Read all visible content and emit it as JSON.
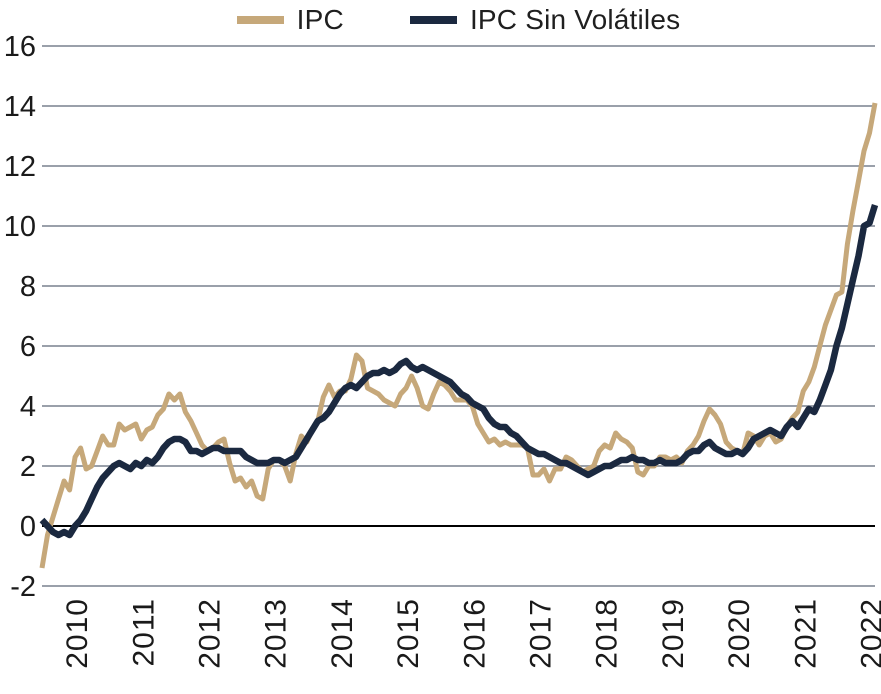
{
  "legend": {
    "items": [
      {
        "label": "IPC",
        "color": "#C6A87A"
      },
      {
        "label": "IPC Sin Volátiles",
        "color": "#1B2940"
      }
    ]
  },
  "colors": {
    "ipc_line": "#C6A87A",
    "ipc_sin_volatiles_line": "#1B2940",
    "gridline": "#9aa0aa",
    "zero_line": "#000000",
    "axis_text": "#1a1a1a",
    "background": "#ffffff"
  },
  "chart_data": {
    "type": "line",
    "title": "",
    "xlabel": "",
    "ylabel": "",
    "grid": "horizontal",
    "legend_position": "top-center",
    "x_frequency": "monthly",
    "x_range": [
      "2010-01",
      "2022-08"
    ],
    "x_tick_labels": [
      "2010",
      "2011",
      "2012",
      "2013",
      "2014",
      "2015",
      "2016",
      "2017",
      "2018",
      "2019",
      "2020",
      "2021",
      "2022"
    ],
    "x_tick_month_index": [
      6,
      18,
      30,
      42,
      54,
      66,
      78,
      90,
      102,
      114,
      126,
      138,
      150
    ],
    "x_tick_label_rotation_deg": -90,
    "y_ticks": [
      -2,
      0,
      2,
      4,
      6,
      8,
      10,
      12,
      14,
      16
    ],
    "ylim": [
      -2,
      16
    ],
    "zero_line": true,
    "series": [
      {
        "name": "IPC",
        "color": "#C6A87A",
        "stroke_width": 5,
        "values": [
          -1.4,
          -0.3,
          0.3,
          0.9,
          1.5,
          1.2,
          2.3,
          2.6,
          1.9,
          2.0,
          2.5,
          3.0,
          2.7,
          2.7,
          3.4,
          3.2,
          3.3,
          3.4,
          2.9,
          3.2,
          3.3,
          3.7,
          3.9,
          4.4,
          4.2,
          4.4,
          3.8,
          3.5,
          3.1,
          2.7,
          2.5,
          2.6,
          2.8,
          2.9,
          2.1,
          1.5,
          1.6,
          1.3,
          1.5,
          1.0,
          0.9,
          1.9,
          2.2,
          2.2,
          2.0,
          1.5,
          2.4,
          3.0,
          2.8,
          3.2,
          3.5,
          4.3,
          4.7,
          4.3,
          4.5,
          4.5,
          4.9,
          5.7,
          5.5,
          4.6,
          4.5,
          4.4,
          4.2,
          4.1,
          4.0,
          4.4,
          4.6,
          5.0,
          4.6,
          4.0,
          3.9,
          4.4,
          4.8,
          4.7,
          4.5,
          4.2,
          4.2,
          4.2,
          4.0,
          3.4,
          3.1,
          2.8,
          2.9,
          2.7,
          2.8,
          2.7,
          2.7,
          2.7,
          2.6,
          1.7,
          1.7,
          1.9,
          1.5,
          1.9,
          1.9,
          2.3,
          2.2,
          2.0,
          1.8,
          1.9,
          2.0,
          2.5,
          2.7,
          2.6,
          3.1,
          2.9,
          2.8,
          2.6,
          1.8,
          1.7,
          2.0,
          2.0,
          2.3,
          2.3,
          2.2,
          2.3,
          2.1,
          2.5,
          2.7,
          3.0,
          3.5,
          3.9,
          3.7,
          3.4,
          2.8,
          2.6,
          2.5,
          2.4,
          3.1,
          3.0,
          2.7,
          3.0,
          3.1,
          2.8,
          2.9,
          3.3,
          3.6,
          3.8,
          4.5,
          4.8,
          5.3,
          6.0,
          6.7,
          7.2,
          7.7,
          7.8,
          9.4,
          10.5,
          11.5,
          12.5,
          13.1,
          14.1
        ]
      },
      {
        "name": "IPC Sin Volátiles",
        "color": "#1B2940",
        "stroke_width": 6.5,
        "values": [
          0.2,
          0.0,
          -0.2,
          -0.3,
          -0.2,
          -0.3,
          0.0,
          0.2,
          0.5,
          0.9,
          1.3,
          1.6,
          1.8,
          2.0,
          2.1,
          2.0,
          1.9,
          2.1,
          2.0,
          2.2,
          2.1,
          2.3,
          2.6,
          2.8,
          2.9,
          2.9,
          2.8,
          2.5,
          2.5,
          2.4,
          2.5,
          2.6,
          2.6,
          2.5,
          2.5,
          2.5,
          2.5,
          2.3,
          2.2,
          2.1,
          2.1,
          2.1,
          2.2,
          2.2,
          2.1,
          2.2,
          2.3,
          2.6,
          2.9,
          3.2,
          3.5,
          3.6,
          3.8,
          4.1,
          4.4,
          4.6,
          4.7,
          4.6,
          4.8,
          5.0,
          5.1,
          5.1,
          5.2,
          5.1,
          5.2,
          5.4,
          5.5,
          5.3,
          5.2,
          5.3,
          5.2,
          5.1,
          5.0,
          4.9,
          4.8,
          4.6,
          4.4,
          4.3,
          4.1,
          4.0,
          3.9,
          3.6,
          3.4,
          3.3,
          3.3,
          3.1,
          3.0,
          2.8,
          2.6,
          2.5,
          2.4,
          2.4,
          2.3,
          2.2,
          2.1,
          2.1,
          2.0,
          1.9,
          1.8,
          1.7,
          1.8,
          1.9,
          2.0,
          2.0,
          2.1,
          2.2,
          2.2,
          2.3,
          2.2,
          2.2,
          2.1,
          2.1,
          2.2,
          2.1,
          2.1,
          2.1,
          2.2,
          2.4,
          2.5,
          2.5,
          2.7,
          2.8,
          2.6,
          2.5,
          2.4,
          2.4,
          2.5,
          2.4,
          2.6,
          2.9,
          3.0,
          3.1,
          3.2,
          3.1,
          3.0,
          3.3,
          3.5,
          3.3,
          3.6,
          3.9,
          3.8,
          4.2,
          4.7,
          5.2,
          6.0,
          6.6,
          7.4,
          8.2,
          9.0,
          10.0,
          10.1,
          10.7
        ]
      }
    ]
  }
}
